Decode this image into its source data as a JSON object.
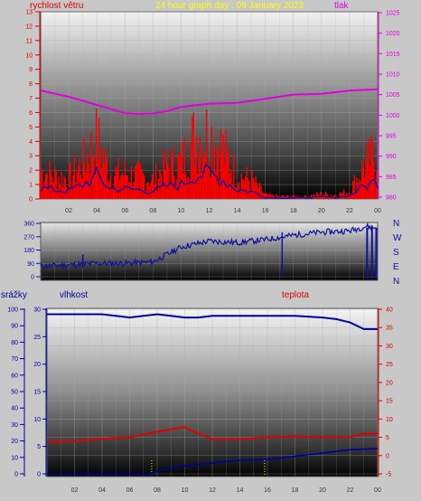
{
  "header": {
    "title": "24 hour graph day : 09 January 2023",
    "left_label": "rychlost větru",
    "right_label": "tlak"
  },
  "colors": {
    "wind": "#ff0000",
    "gust_line": "#1010a0",
    "pressure": "#e000e0",
    "direction": "#1010a0",
    "humidity": "#0000a0",
    "temperature": "#e00000",
    "rain": "#0000a0",
    "title": "#ffff00",
    "left_axis": "#e00000",
    "right_axis": "#e000e0",
    "frame": "#3a3a3a"
  },
  "compass": [
    "N",
    "W",
    "S",
    "E",
    "N"
  ],
  "bottom_labels": {
    "rain": "srážky",
    "humidity": "vlhkost",
    "temperature": "teplota"
  },
  "chart_data": [
    {
      "type": "line",
      "title": "24 hour graph day : 09 January 2023",
      "x_ticks": [
        "02",
        "04",
        "06",
        "08",
        "10",
        "12",
        "14",
        "16",
        "18",
        "20",
        "22",
        "00"
      ],
      "left_axis": {
        "label": "rychlost větru",
        "ticks": [
          "0",
          "1",
          "2",
          "3",
          "4",
          "5",
          "6",
          "7",
          "8",
          "9",
          "10",
          "11",
          "12",
          "13"
        ],
        "ylim": [
          0,
          13
        ]
      },
      "right_axis": {
        "label": "tlak",
        "ticks": [
          "980",
          "985",
          "990",
          "995",
          "1000",
          "1005",
          "1010",
          "1015",
          "1020",
          "1025"
        ],
        "ylim": [
          980,
          1025
        ]
      },
      "series": [
        {
          "name": "rychlost větru",
          "axis": "left",
          "x": [
            0,
            1,
            2,
            3,
            4,
            5,
            6,
            7,
            8,
            9,
            10,
            11,
            12,
            13,
            14,
            15,
            16,
            17,
            18,
            19,
            20,
            21,
            22,
            23,
            24
          ],
          "values": [
            2.2,
            1.8,
            1.6,
            2.8,
            4.5,
            2.0,
            2.0,
            1.8,
            1.5,
            2.5,
            2.8,
            4.8,
            5.0,
            3.8,
            1.8,
            1.5,
            0.3,
            0.2,
            0.2,
            0.2,
            0.4,
            0.3,
            0.6,
            2.5,
            3.6
          ]
        },
        {
          "name": "tlak",
          "axis": "right",
          "x": [
            0,
            2,
            4,
            6,
            7,
            8,
            9,
            10,
            12,
            14,
            16,
            18,
            20,
            22,
            24
          ],
          "values": [
            1006.0,
            1004.5,
            1002.5,
            1000.5,
            1000.3,
            1000.4,
            1001.0,
            1002.0,
            1002.8,
            1003.0,
            1004.0,
            1005.0,
            1005.2,
            1006.0,
            1006.3
          ]
        }
      ]
    },
    {
      "type": "line",
      "title": "",
      "x_ticks": [],
      "left_axis": {
        "ticks": [
          "0",
          "90",
          "180",
          "270",
          "360"
        ],
        "ylim": [
          0,
          360
        ]
      },
      "right_axis": {
        "ticks": [
          "N",
          "W",
          "S",
          "E",
          "N"
        ]
      },
      "series": [
        {
          "name": "",
          "values_x": [
            0,
            2,
            4,
            6,
            8,
            10,
            12,
            14,
            16,
            18,
            20,
            22,
            23.2,
            23.8,
            24
          ],
          "values": [
            70,
            80,
            90,
            90,
            100,
            200,
            240,
            230,
            250,
            280,
            300,
            310,
            340,
            330,
            335
          ]
        }
      ]
    },
    {
      "type": "line",
      "title": "",
      "x_ticks": [
        "02",
        "04",
        "06",
        "08",
        "10",
        "12",
        "14",
        "16",
        "18",
        "20",
        "22",
        "00"
      ],
      "axes": [
        {
          "label": "srážky",
          "ticks": [
            "0",
            "5",
            "10",
            "15",
            "20",
            "25",
            "30"
          ],
          "ylim": [
            0,
            30
          ]
        },
        {
          "label": "vlhkost",
          "ticks": [
            "0",
            "10",
            "20",
            "30",
            "40",
            "50",
            "60",
            "70",
            "80",
            "90",
            "100"
          ],
          "ylim": [
            0,
            100
          ]
        },
        {
          "label": "teplota",
          "ticks": [
            "-5",
            "0",
            "5",
            "10",
            "15",
            "20",
            "25",
            "30",
            "35",
            "40"
          ],
          "ylim": [
            -5,
            40
          ]
        }
      ],
      "series": [
        {
          "name": "vlhkost",
          "axis": "vlhkost",
          "x": [
            0,
            2,
            4,
            5,
            6,
            7,
            8,
            9,
            10,
            11,
            12,
            14,
            16,
            18,
            20,
            21,
            22,
            23,
            24
          ],
          "values": [
            97,
            97,
            97,
            96,
            95,
            96,
            97,
            96,
            95,
            95,
            96,
            96,
            96,
            96,
            95,
            94,
            92,
            88,
            88
          ]
        },
        {
          "name": "teplota",
          "axis": "teplota",
          "x": [
            0,
            2,
            4,
            6,
            8,
            9,
            10,
            11,
            12,
            14,
            16,
            18,
            20,
            22,
            23,
            24
          ],
          "values": [
            3.8,
            4.0,
            4.6,
            5.0,
            6.5,
            7.2,
            7.8,
            6.0,
            4.5,
            4.5,
            5.0,
            5.2,
            5.0,
            5.0,
            6.0,
            6.0
          ]
        },
        {
          "name": "srážky",
          "axis": "srážky",
          "x": [
            0,
            7.6,
            8,
            10,
            12,
            14,
            16,
            18,
            20,
            22,
            24
          ],
          "values": [
            0,
            0,
            0.5,
            1.5,
            2.0,
            2.5,
            2.6,
            3.2,
            3.8,
            4.4,
            4.6
          ]
        }
      ]
    }
  ]
}
